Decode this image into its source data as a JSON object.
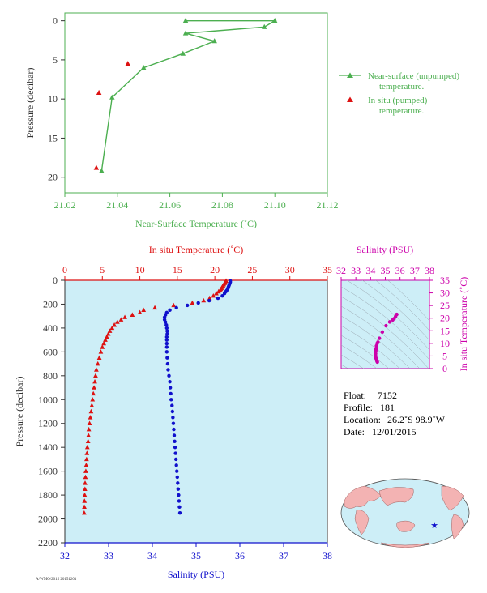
{
  "colors": {
    "near_surface": "#4caf50",
    "in_situ_temp": "#dd1111",
    "salinity": "#1010cc",
    "ts_diagram": "#cc00aa",
    "axis_dark": "#333333",
    "main_background": "#cdeef7",
    "map_land": "#f3b3b3",
    "map_ocean": "#cdeef7"
  },
  "chart_data": [
    {
      "type": "line",
      "xlabel": "Near-Surface Temperature (˚C)",
      "ylabel": "Pressure (decibar)",
      "xlim": [
        21.02,
        21.12
      ],
      "ylim": [
        22,
        -1
      ],
      "xticks": [
        "21.02",
        "21.04",
        "21.06",
        "21.08",
        "21.10",
        "21.12"
      ],
      "yticks": [
        "0",
        "5",
        "10",
        "15",
        "20"
      ],
      "legend_position": "right",
      "series": [
        {
          "name": "Near-surface (unpumped) temperature.",
          "marker": "triangle",
          "line": true,
          "x": [
            21.066,
            21.1,
            21.096,
            21.066,
            21.077,
            21.065,
            21.05,
            21.038,
            21.034
          ],
          "y": [
            0.0,
            0.0,
            0.8,
            1.6,
            2.6,
            4.2,
            6.0,
            9.8,
            19.2
          ]
        },
        {
          "name": "In situ (pumped) temperature.",
          "marker": "triangle",
          "line": false,
          "x": [
            21.044,
            21.033,
            21.032
          ],
          "y": [
            5.5,
            9.2,
            18.8
          ]
        }
      ]
    },
    {
      "type": "scatter",
      "title_top": "In situ Temperature (˚C)",
      "xlabel": "Salinity (PSU)",
      "ylabel": "Pressure (decibar)",
      "temperature_lim": [
        0,
        35
      ],
      "salinity_lim": [
        32,
        38
      ],
      "pressure_lim": [
        2200,
        0
      ],
      "temperature_ticks": [
        "0",
        "5",
        "10",
        "15",
        "20",
        "25",
        "30",
        "35"
      ],
      "salinity_ticks": [
        "32",
        "33",
        "34",
        "35",
        "36",
        "37",
        "38"
      ],
      "pressure_ticks": [
        "0",
        "200",
        "400",
        "600",
        "800",
        "1000",
        "1200",
        "1400",
        "1600",
        "1800",
        "2000",
        "2200"
      ],
      "series": [
        {
          "name": "In situ Temperature",
          "axis": "temperature",
          "marker": "triangle",
          "pressure": [
            5,
            15,
            25,
            35,
            45,
            55,
            65,
            75,
            85,
            95,
            110,
            130,
            150,
            170,
            190,
            210,
            230,
            250,
            270,
            290,
            310,
            330,
            350,
            375,
            400,
            425,
            450,
            475,
            500,
            530,
            560,
            600,
            650,
            700,
            750,
            800,
            850,
            900,
            950,
            1000,
            1050,
            1100,
            1150,
            1200,
            1250,
            1300,
            1350,
            1400,
            1450,
            1500,
            1550,
            1600,
            1650,
            1700,
            1750,
            1800,
            1850,
            1900,
            1950
          ],
          "temperature": [
            21.5,
            21.4,
            21.3,
            21.2,
            21.1,
            21.0,
            20.9,
            20.8,
            20.7,
            20.5,
            20.2,
            19.8,
            19.3,
            18.5,
            17.0,
            14.5,
            12.0,
            10.5,
            10.0,
            9.0,
            8.0,
            7.5,
            7.0,
            6.6,
            6.3,
            6.0,
            5.8,
            5.6,
            5.4,
            5.2,
            5.0,
            4.8,
            4.6,
            4.4,
            4.2,
            4.1,
            4.0,
            3.9,
            3.8,
            3.7,
            3.6,
            3.5,
            3.4,
            3.3,
            3.2,
            3.15,
            3.1,
            3.0,
            2.95,
            2.9,
            2.85,
            2.8,
            2.75,
            2.7,
            2.68,
            2.65,
            2.62,
            2.6,
            2.58
          ]
        },
        {
          "name": "Salinity",
          "axis": "salinity",
          "marker": "dot",
          "pressure": [
            5,
            15,
            25,
            35,
            45,
            55,
            65,
            75,
            85,
            95,
            110,
            130,
            150,
            170,
            190,
            210,
            230,
            250,
            270,
            290,
            310,
            330,
            350,
            375,
            400,
            425,
            450,
            475,
            500,
            530,
            560,
            600,
            650,
            700,
            750,
            800,
            850,
            900,
            950,
            1000,
            1050,
            1100,
            1150,
            1200,
            1250,
            1300,
            1350,
            1400,
            1450,
            1500,
            1550,
            1600,
            1650,
            1700,
            1750,
            1800,
            1850,
            1900,
            1950
          ],
          "salinity": [
            35.78,
            35.78,
            35.77,
            35.76,
            35.75,
            35.74,
            35.73,
            35.72,
            35.7,
            35.68,
            35.65,
            35.6,
            35.5,
            35.3,
            35.05,
            34.8,
            34.55,
            34.4,
            34.33,
            34.3,
            34.28,
            34.28,
            34.3,
            34.32,
            34.33,
            34.34,
            34.34,
            34.33,
            34.33,
            34.33,
            34.33,
            34.33,
            34.34,
            34.35,
            34.36,
            34.38,
            34.4,
            34.41,
            34.42,
            34.43,
            34.45,
            34.46,
            34.47,
            34.48,
            34.49,
            34.5,
            34.51,
            34.52,
            34.53,
            34.54,
            34.55,
            34.56,
            34.57,
            34.58,
            34.59,
            34.6,
            34.61,
            34.62,
            34.63
          ]
        }
      ]
    },
    {
      "type": "scatter",
      "title": "Salinity (PSU)",
      "ylabel": "In situ Temperature (˚C)",
      "xlim": [
        32,
        38
      ],
      "ylim": [
        0,
        35
      ],
      "xticks": [
        "32",
        "33",
        "34",
        "35",
        "36",
        "37",
        "38"
      ],
      "yticks": [
        "0",
        "5",
        "10",
        "15",
        "20",
        "25",
        "30",
        "35"
      ],
      "series": [
        {
          "name": "T-S",
          "salinity": [
            35.78,
            35.7,
            35.6,
            35.5,
            35.3,
            35.05,
            34.8,
            34.6,
            34.5,
            34.45,
            34.4,
            34.38,
            34.36,
            34.35,
            34.34,
            34.33,
            34.33,
            34.34,
            34.36,
            34.38,
            34.4,
            34.42,
            34.44,
            34.46
          ],
          "temperature": [
            21.5,
            20.7,
            19.8,
            19.3,
            18.5,
            17.0,
            14.5,
            12.0,
            10.5,
            10.0,
            9.0,
            8.0,
            7.5,
            7.0,
            6.0,
            5.4,
            5.0,
            4.6,
            4.2,
            4.0,
            3.6,
            3.2,
            2.9,
            2.6
          ]
        }
      ]
    }
  ],
  "info": {
    "float_label": "Float:",
    "float_value": "7152",
    "profile_label": "Profile:",
    "profile_value": "181",
    "location_label": "Location:",
    "location_value": "26.2˚S  98.9˚W",
    "date_label": "Date:",
    "date_value": "12/01/2015"
  },
  "footer_note": "A/WMO/2015 20151201"
}
